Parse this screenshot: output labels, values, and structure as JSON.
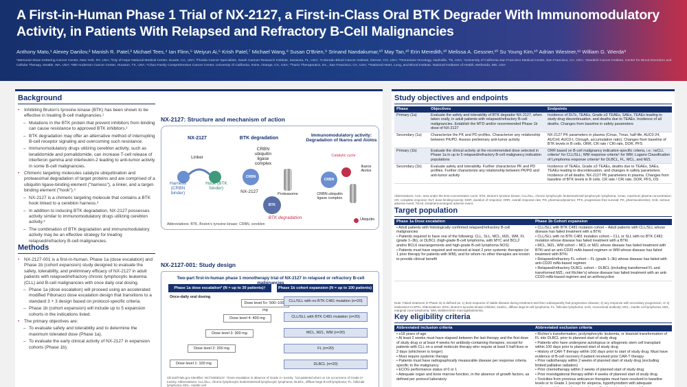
{
  "header": {
    "title": "A First-in-Human Phase 1 Trial of NX-2127, a First-in-Class Oral BTK Degrader With Immunomodulatory Activity, in Patients With Relapsed and Refractory B-Cell Malignancies",
    "authors": "Anthony Mato,¹ Alexey Danilov,² Manish R. Patel,³ Michael Tees,⁴ Ian Flinn,⁵ Weiyun Ai,⁶ Krish Patel,⁷ Michael Wang,⁸ Susan O'Brien,⁹ Srinand Nandakumar,¹⁰ May Tan,¹⁰ Erin Meredith,¹⁰ Melissa A. Gessner,¹⁰ Su Young Kim,¹⁰ Adrian Wiestner,¹¹ William G. Wierda⁸",
    "affiliations": "¹Memorial Sloan Kettering Cancer Center, New York, NY, USA; ²City of Hope National Medical Center, Duarte, CA, USA; ³Florida Cancer Specialists, Sarah Cannon Research Institute, Sarasota, FL, USA; ⁴Colorado Blood Cancer Institute, Denver, CO, USA; ⁵Tennessee Oncology, Nashville, TN, USA; ⁶University of California San Francisco Medical Center, San Francisco, CA, USA; ⁷Swedish Cancer Institute, Center for Blood Disorders and Cellular Therapy, Seattle, WA, USA; ⁸MD Anderson Cancer Center, Houston, TX, USA; ⁹Chao Family Comprehensive Cancer Center, University of California, Irvine, Orange, CA, USA; ¹⁰Nurix Therapeutics, Inc., San Francisco, CA, USA; ¹¹National Heart, Lung, and Blood Institute, National Institutes of Health, Bethesda, MD, USA"
  },
  "background": {
    "heading": "Background",
    "items": [
      {
        "t": "Inhibiting Bruton's tyrosine kinase (BTK) has been shown to be effective in treating B-cell malignancies.¹",
        "sub": false
      },
      {
        "t": "Mutations in the BTK protein that prevent inhibitors from binding can cause resistance to approved BTK inhibitors.²",
        "sub": true
      },
      {
        "t": "BTK degradation may offer an alternative method of interrupting B-cell receptor signaling and overcoming such resistance.",
        "sub": true
      },
      {
        "t": "Immunomodulatory drugs utilizing cereblon activity, such as lenalidomide and pomalidomide, can increase T-cell release of interferon gamma and interleukin-2 leading to anti-tumor activity in some B-cell malignancies.",
        "sub": true
      },
      {
        "t": "Chimeric targeting molecules catalyze ubiquitination and proteasomal degradation of target proteins and are comprised of a ubiquitin ligase-binding element (\"harness\"), a linker, and a target-binding element (\"hook\").³",
        "sub": false
      },
      {
        "t": "NX-2127 is a chimeric targeting molecule that contains a BTK hook linked to a cereblon harness.³",
        "sub": true
      },
      {
        "t": "In addition to inducing BTK degradation, NX-2127 possesses activity similar to immunomodulatory drugs utilizing cereblon activity.³",
        "sub": true
      },
      {
        "t": "The combination of BTK degradation and immunomodulatory activity may be an effective strategy for treating relapsed/refractory B-cell malignancies.",
        "sub": true
      }
    ]
  },
  "methods": {
    "heading": "Methods",
    "items": [
      {
        "t": "NX-2127-001 is a first-in-human, Phase 1a (dose escalation) and Phase 1b (cohort expansion) study designed to evaluate the safety, tolerability, and preliminary efficacy of NX-2127 in adult patients with relapsed/refractory chronic lymphocytic leukemia (CLL) and B-cell malignancies with once daily oral dosing.",
        "sub": false
      },
      {
        "t": "Phase 1a (dose escalation) will proceed using an accelerated modified Fibonacci dose escalation design that transitions to a standard 3 + 3 design based on protocol-specific criteria.",
        "sub": true
      },
      {
        "t": "Phase 1b (cohort expansion) will include up to 5 expansion cohorts in the indications listed.",
        "sub": true
      },
      {
        "t": "The primary objectives are:",
        "sub": false
      },
      {
        "t": "To evaluate safety and tolerability and to determine the maximum tolerated dose (Phase 1a).",
        "sub": true
      },
      {
        "t": "To evaluate the early clinical activity of NX-2127 in expansion cohorts (Phase 1b).",
        "sub": true
      }
    ]
  },
  "fig1": {
    "title": "NX-2127: Structure and mechanism of action",
    "panel1": "NX-2127",
    "linker": "Linker",
    "harness": "Harness (CRBN binder)",
    "hook": "Hook (BTK binder)",
    "panel2": "BTK degradation",
    "crbn_lig": "CRBN ubiquitin ligase complex",
    "nx": "NX-2127",
    "prot": "Proteasome",
    "btk": "BTK",
    "crbn": "CRBN",
    "deg": "BTK degradation",
    "panel3": "Immunomodulatory activity: Degradation of Ikaros and Aiolos",
    "ia": "Ikaros Aiolos",
    "crbn_lig2": "CRBN ubiquitin ligase complex",
    "cat": "Catalytic cycle",
    "ubq": "Ubiquitin",
    "abbr": "Abbreviations: BTK, Bruton's tyrosine kinase; CRBN, cereblon"
  },
  "fig2": {
    "title": "NX-2127-001: Study design",
    "subtitle": "Two-part first-in-human phase 1 monotherapy trial of NX-2127 in relapsed or refractory B-cell malignancies",
    "p1a": "Phase 1a dose escalation* (N = up to 30 patients)†",
    "p1b": "Phase 1b cohort expansion (N = up to 100 patients)",
    "once": "Once-daily oral dosing",
    "doses": [
      "Dose level 5+: 500–1000 mg",
      "Dose level 4: 400 mg",
      "Dose level 3: 300 mg",
      "Dose level 2: 200 mg",
      "Dose level 1: 100 mg"
    ],
    "cohorts": [
      "CLL/SLL with no BTK C481 mutation (n=20)",
      "CLL/SLL with BTK C481 mutation (n=20)",
      "MCL, MZL, WM (n=20)",
      "FL (n=20)",
      "DLBCL (n=20)"
    ],
    "note": "ClinicalTrials.gov Identifier: NCT04830137. *Dose escalation in absence of Grade 2+ toxicity. †≥3 patients/cohort on 1st occurrence of Grade 2+ toxicity. Abbreviations: CLL/SLL, chronic lymphocytic leukemia/small lymphocytic lymphoma; DLBCL, diffuse large B-cell lymphoma; FL, follicular lymphoma; MCL, mantle cell"
  },
  "objectives": {
    "heading": "Study objectives and endpoints",
    "cols": [
      "Phase",
      "Objectives",
      "Endpoints"
    ],
    "rows": [
      [
        "Primary (1a)",
        "Evaluate the safety and tolerability of BTK degrader NX-2127, when taken orally, in adult patients with relapsed/refractory B-cell malignancies. Establish the MTD and/or recommended Phase 1b dose of NX-2127",
        "Incidence of DLTs, TEAEs, Grade ≥3 TEAEs, SAEs, TEAEs leading to study drug discontinuation, and deaths due to TEAEs. Incidence of all deaths. Changes from baseline in safety parameters"
      ],
      [
        "Secondary (1a)",
        "Characterize the PK and PD profiles. Characterize any relationship between PK/PD. Assess preliminary anti-tumor activity",
        "NX-2127 PK parameters in plasma (Cmax, Tmax, half-life, AUC0-24, AUCinf, AUC0-t, Ctrough, accumulation ratio). Changes from baseline of BTK levels in B cells. ORR, CR rate / CRi rate, DOR, PFS"
      ],
      [
        "Primary (1b)",
        "Evaluate the clinical activity at the recommended dose selected in Phase 1a in up to 5 relapsed/refractory B-cell malignancy indication populations",
        "ORR based on B-cell malignancy indication-specific criteria, i.e.: iwCLL criteria⁴ for CLL/SLL; WM response criteria⁵ for WM; Lugano Classification of Lymphoma response criteria⁶ for DLBCL, FL, MCL, and MZL"
      ],
      [
        "Secondary (1b)",
        "Evaluate safety and tolerability. Further characterize PK and PD profiles. Further characterize any relationship between PK/PD and anti-tumor activity",
        "Incidence of TEAEs, Grade ≥3 TEAEs, deaths due to TEAEs, SAEs, TEAEs leading to discontinuation, and changes in safety parameters. Incidence of all deaths. NX-2127 PK parameters in plasma. Changes from baseline of BTK levels in B cells. CR rate / CRi rate, DOR, PFS, OS"
      ]
    ],
    "abbr": "Abbreviations: AUC, area under the time-concentration curve; BTK, Bruton's tyrosine kinase; CLL/SLL, chronic lymphocytic leukemia/small lymphocytic lymphoma; Cmax, maximum plasma concentration; CR, complete response; DLT, dose-limiting toxicity; DOR, duration of response; ORR, overall response rate; PD, pharmacodynamics; PFS, progression-free survival; PK, pharmacokinetics; SAE, serious adverse event; TEAE, treatment-emergent adverse event."
  },
  "population": {
    "heading": "Target population",
    "cols": [
      "Phase 1a Dose escalation",
      "Phase 1b Cohort expansion"
    ],
    "left": [
      "Adult patients with histologically confirmed relapsed/refractory B-cell malignancies",
      "Patients required to have one of the following: CLL, SLL, MCL, MZL, WM, FL (grade 1–3b), or DLBCL (high-grade B-cell lymphoma, with MYC and BCL2 and/or BCL6 rearrangements and high-grade B-cell lymphoma NOS)",
      "Patients must have required and received at least 2 prior systemic therapies (or 1 prior therapy for patients with WM), and for whom no other therapies are known to provide clinical benefit"
    ],
    "right": [
      "CLL/SLL with BTK C481 mutation cohort – Adult patients with CLL/SLL whose disease has failed treatment with a BTKi",
      "CLL/SLL with no BTK C481 mutation cohort – CLL or SLL with no BTK C481 mutation whose disease has failed treatment with a BTKi",
      "MCL, MZL, WM cohort – MCL or MZL whose disease has failed treatment with BTKi and an anti-CD20 mAb-based regimen or WM whose disease has failed treatment with BTKi",
      "Relapsed/refractory FL cohort – FL (grade 1–3b) whose disease has failed with anti-CD20 mAb-based regimen",
      "Relapsed/refractory DLBCL cohort – DLBCL (including transformed FL and transformed MZL; not Richter's) whose disease has failed treatment with an anti-CD20 mAb-based regimen and an anthracycline"
    ],
    "note": "Note: Failed treatment in Phase 1b is defined as: 1) best response of stable disease during treatment and then subsequently had progressive disease; 2) any response with secondary progression; or 3) intolerance to BTKi. Abbreviations: BTKi, Bruton's tyrosine kinase inhibitor; DLBCL, diffuse large B-cell lymphoma; FL, follicular lymphoma; mAb, monoclonal antibody; MCL, mantle cell lymphoma; MZL, marginal zone lymphoma; WM, Waldenström macroglobulinemia."
  },
  "eligibility": {
    "heading": "Key eligibility criteria",
    "inc": "Abbreviated inclusion criteria",
    "exc": "Abbreviated exclusion criteria",
    "inclusion": [
      "≥18 years of age",
      "At least 2 weeks must have elapsed between the last therapy and the first dose of study drug or at least 4 weeks for antibody-containing therapies, except for patients with CLL on a small molecule therapy who require at least 5 half-lives or 2 days (whichever is longer)",
      "Must require systemic therapy",
      "Patients must have radiographically measurable disease per response criteria specific to the malignancy",
      "ECOG performance status of 0 or 1",
      "Adequate organ and bone marrow function, in the absence of growth factors, as defined per protocol laboratory"
    ],
    "exclusion": [
      "Richter's transformation, prolymphocytic leukemia, or blastoid transformation of FL into DLBCL prior to planned start of study drug",
      "Patients who have undergone autologous or allogeneic stem cell transplant within 100 days prior to planned start of study drug",
      "History of CAR-T therapy within 100 days prior to start of study drug. Must have evidence of B-cell recovery if patient received prior CAR-T therapy",
      "Prior radiotherapy within 2 weeks of planned start of study drug (excluding limited palliative radiation)",
      "Prior chemotherapy within 2 weeks of planned start of study drug",
      "Prior investigational therapy within 4 weeks of planned start of study drug",
      "Toxicities from previous anticancer therapies must have resolved to baseline levels or to Grade 1 (except for alopecia, hypothyroidism with adequate replacement therapy, hypogonadism with adequate replacement therapy, peripheral neuropathy, or hematologic parameters meeting inclusion criteria)",
      "History of Grade ≥2 hemorrhage within 28 days"
    ]
  },
  "colors": {
    "navy": "#16306d",
    "accent": "#c22f4a",
    "light": "#e8ecf5"
  }
}
